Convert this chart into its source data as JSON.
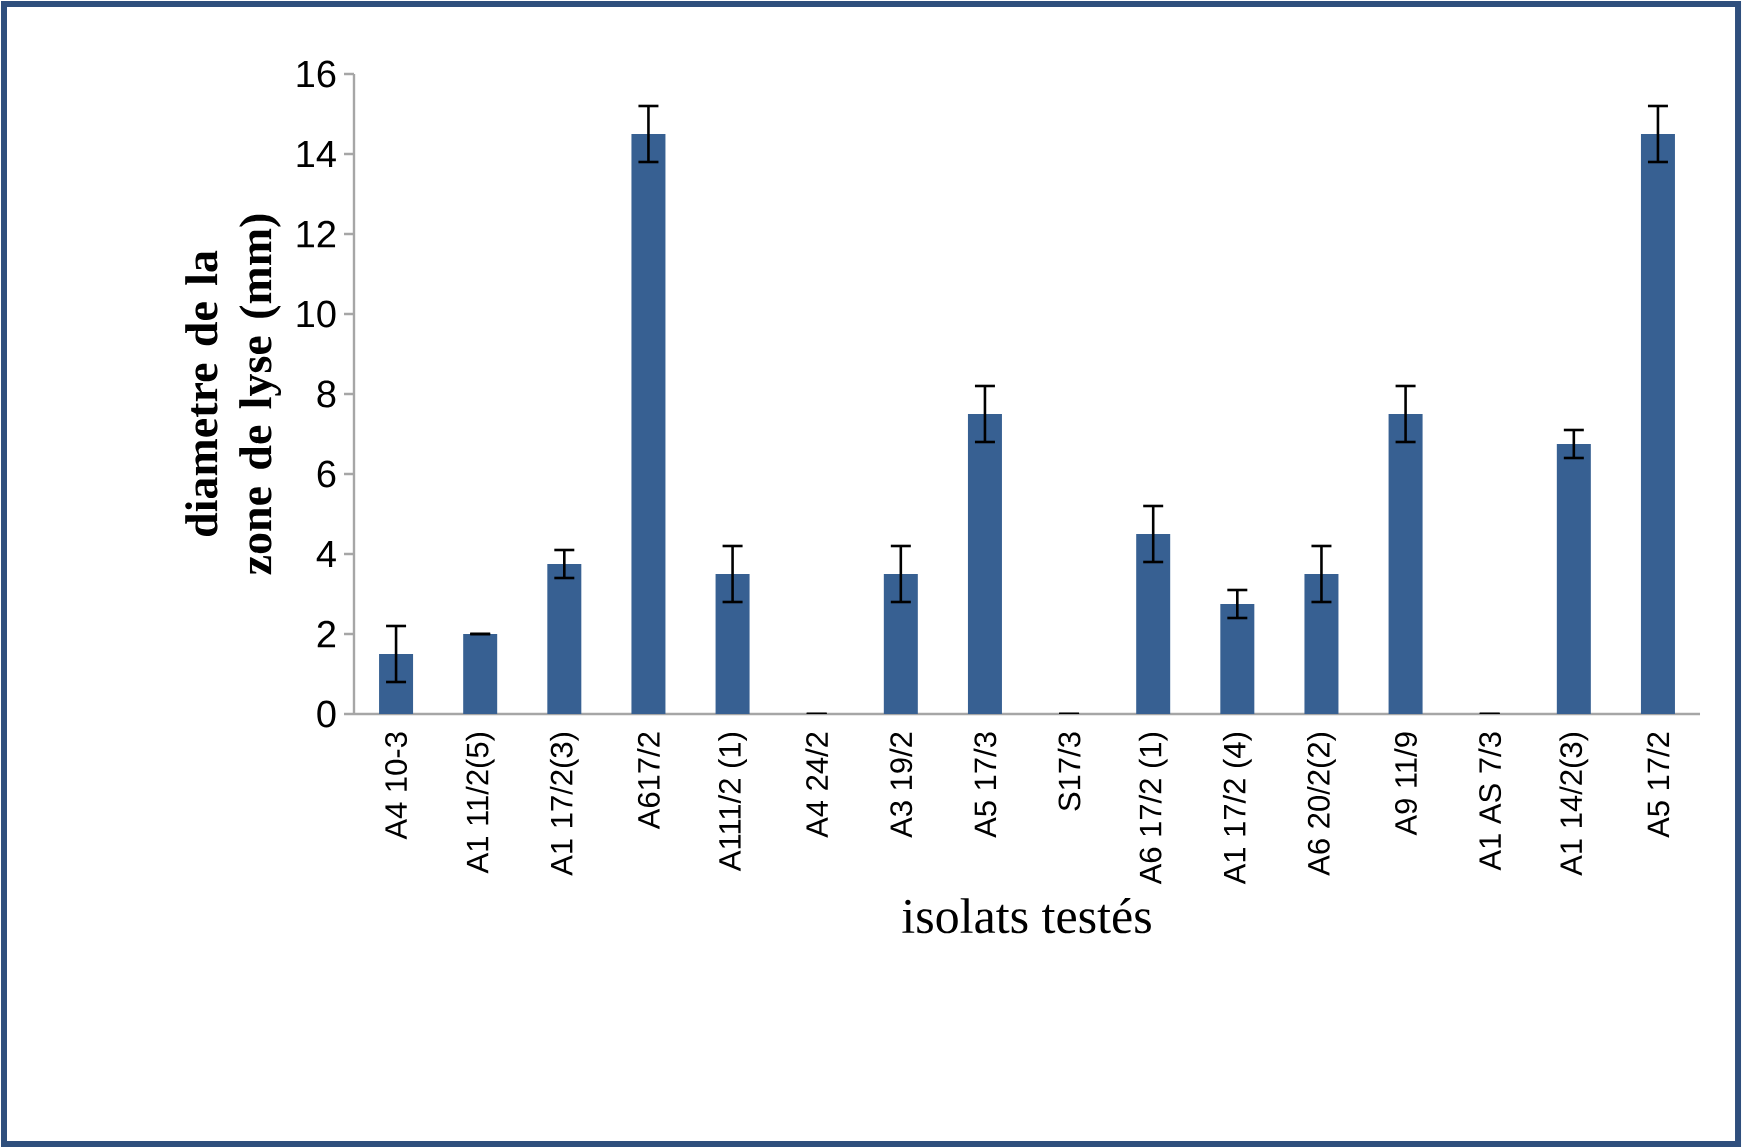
{
  "chart_data": {
    "type": "bar",
    "xlabel": "isolats testés",
    "ylabel": "diametre de la zone de lyse (mm)",
    "categories": [
      "A4 10-3",
      "A1 11/2(5)",
      "A1 17/2(3)",
      "A617/2",
      "A111/2 (1)",
      "A4 24/2",
      "A3 19/2",
      "A5 17/3",
      "S17/3",
      "A6 17/2 (1)",
      "A1 17/2 (4)",
      "A6 20/2(2)",
      "A9 11/9",
      "A1 AS 7/3",
      "A1 14/2(3)",
      "A5 17/2"
    ],
    "values": [
      1.5,
      2,
      3.75,
      14.5,
      3.5,
      0,
      3.5,
      7.5,
      0,
      4.5,
      2.75,
      3.5,
      7.5,
      0,
      6.75,
      14.5
    ],
    "errors": [
      0.7,
      0,
      0.35,
      0.7,
      0.7,
      0,
      0.7,
      0.7,
      0,
      0.7,
      0.35,
      0.7,
      0.7,
      0,
      0.35,
      0.7
    ],
    "color": "#376092",
    "ylim": [
      0,
      16
    ],
    "yticks": [
      0,
      2,
      4,
      6,
      8,
      10,
      12,
      14,
      16
    ]
  }
}
